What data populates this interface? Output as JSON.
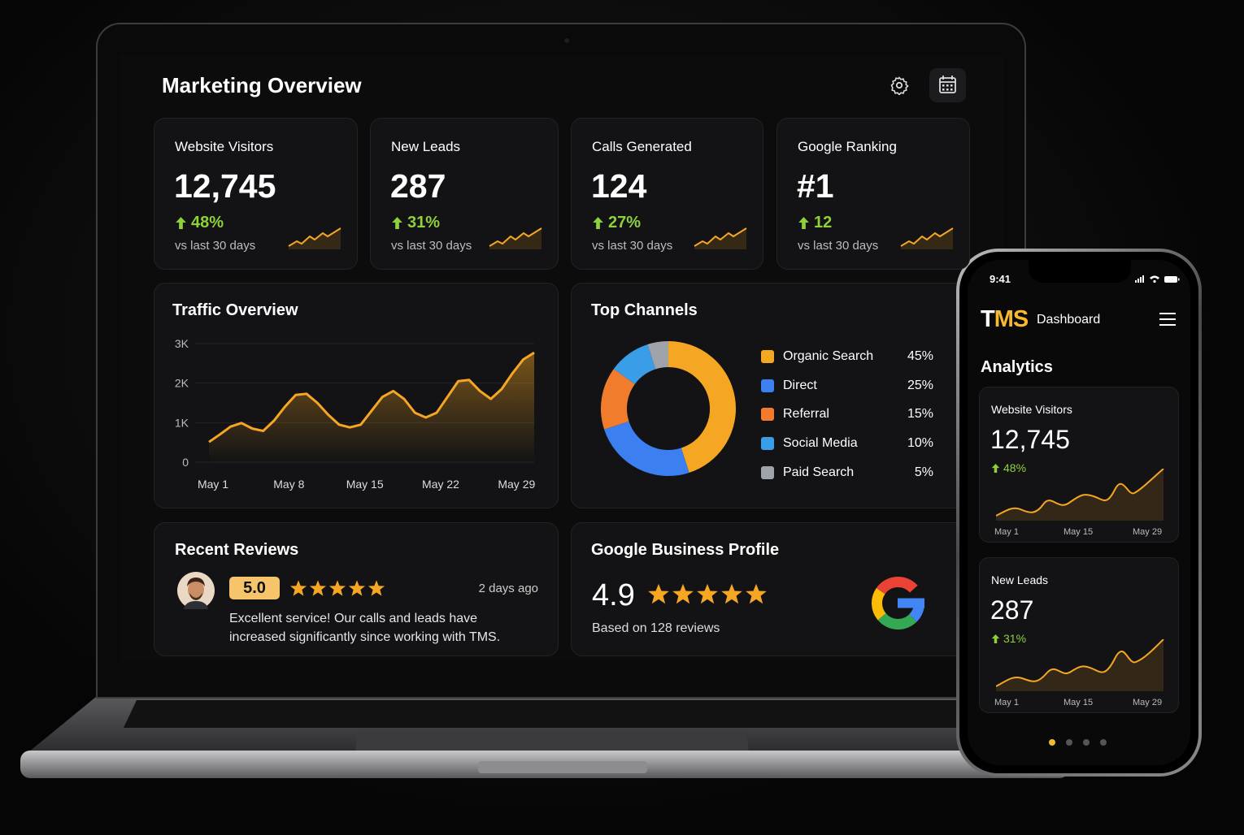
{
  "laptop": {
    "title": "Marketing Overview",
    "kpis": [
      {
        "label": "Website Visitors",
        "value": "12,745",
        "change": "48%",
        "note": "vs last 30 days"
      },
      {
        "label": "New Leads",
        "value": "287",
        "change": "31%",
        "note": "vs last 30 days"
      },
      {
        "label": "Calls Generated",
        "value": "124",
        "change": "27%",
        "note": "vs last 30 days"
      },
      {
        "label": "Google Ranking",
        "value": "#1",
        "change": "12",
        "note": "vs last 30 days"
      }
    ],
    "reviews": {
      "title": "Recent Reviews",
      "rating": "5.0",
      "time": "2 days ago",
      "text": "Excellent service! Our calls and leads have increased significantly since working with TMS."
    },
    "google_profile": {
      "title": "Google Business Profile",
      "rating": "4.9",
      "note": "Based on 128 reviews"
    }
  },
  "phone": {
    "time": "9:41",
    "brand": "TMS",
    "title": "Dashboard",
    "section": "Analytics",
    "cards": [
      {
        "label": "Website Visitors",
        "value": "12,745",
        "change": "48%",
        "x_labels": [
          "May 1",
          "May 15",
          "May 29"
        ]
      },
      {
        "label": "New Leads",
        "value": "287",
        "change": "31%",
        "x_labels": [
          "May 1",
          "May 15",
          "May 29"
        ]
      }
    ]
  },
  "chart_data": [
    {
      "type": "line",
      "title": "Traffic Overview",
      "categories": [
        "May 1",
        null,
        null,
        null,
        null,
        null,
        null,
        "May 8",
        null,
        null,
        null,
        null,
        null,
        null,
        "May 15",
        null,
        null,
        null,
        null,
        null,
        null,
        "May 22",
        null,
        null,
        null,
        null,
        null,
        null,
        "May 29",
        null,
        null
      ],
      "values": [
        510,
        700,
        900,
        990,
        850,
        790,
        1050,
        1400,
        1700,
        1730,
        1500,
        1200,
        950,
        880,
        950,
        1300,
        1650,
        1800,
        1600,
        1250,
        1130,
        1250,
        1650,
        2050,
        2080,
        1800,
        1600,
        1850,
        2250,
        2600,
        2770
      ],
      "color": "#f5a623",
      "ylim": [
        0,
        3000
      ],
      "yticks": [
        0,
        {
          "value": 1000,
          "label": "1K"
        },
        {
          "value": 2000,
          "label": "2K"
        },
        {
          "value": 3000,
          "label": "3K"
        }
      ],
      "grid": true
    },
    {
      "type": "pie",
      "title": "Top Channels",
      "categories": [
        "Organic Search",
        "Direct",
        "Referral",
        "Social Media",
        "Paid Search"
      ],
      "values": [
        45,
        25,
        15,
        10,
        5
      ],
      "value_labels": [
        "45%",
        "25%",
        "15%",
        "10%",
        "5%"
      ],
      "colors": [
        "#f5a623",
        "#3b7ff0",
        "#f07c2c",
        "#3a9de8",
        "#a0a4aa"
      ]
    }
  ]
}
